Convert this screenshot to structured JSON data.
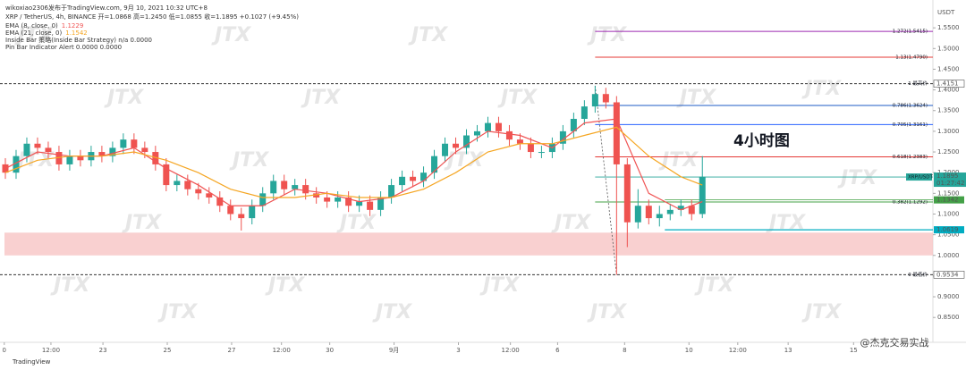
{
  "chart_data": {
    "type": "candlestick",
    "author_line": "wikoxiao2306发布于TradingView.com, 9月 10, 2021 10:32 UTC+8",
    "symbol_line": "XRP / TetherUS, 4h, BINANCE 开=1.0868 高=1.2450 低=1.0855 收=1.1895 +0.1027 (+9.45%)",
    "indicator_lines": [
      "Inside Bar 策略(Inside Bar Strategy) n/a 0.0000",
      "Pin Bar Indicator Alert 0.0000 0.0000"
    ],
    "annotation": "4小时图",
    "y_unit": "USDT",
    "watermark": "JTX",
    "footer_logo": "TradingView",
    "footer_credit": "@杰克交易实战",
    "up_color": "#26a69a",
    "down_color": "#ef5350",
    "xlim": [
      0,
      87
    ],
    "xticks": [
      {
        "value": 0.4,
        "label": "0"
      },
      {
        "value": 4.75,
        "label": "12:00"
      },
      {
        "value": 9.6,
        "label": "23"
      },
      {
        "value": 15.6,
        "label": "25"
      },
      {
        "value": 21.6,
        "label": "27"
      },
      {
        "value": 26.25,
        "label": "12:00"
      },
      {
        "value": 30.75,
        "label": "30"
      },
      {
        "value": 36.75,
        "label": "9月"
      },
      {
        "value": 42.75,
        "label": "3"
      },
      {
        "value": 47.6,
        "label": "12:00"
      },
      {
        "value": 52,
        "label": "6"
      },
      {
        "value": 58.25,
        "label": "8"
      },
      {
        "value": 64.25,
        "label": "10"
      },
      {
        "value": 68.8,
        "label": "12:00"
      },
      {
        "value": 73.5,
        "label": "13"
      },
      {
        "value": 79.6,
        "label": "15"
      }
    ],
    "ylim": [
      0.79,
      1.6
    ],
    "yticks": [
      {
        "value": 0.85,
        "label": "0.8500"
      },
      {
        "value": 0.9,
        "label": "0.9000"
      },
      {
        "value": 0.95,
        "label": "0.9500"
      },
      {
        "value": 1.0,
        "label": "1.0000"
      },
      {
        "value": 1.05,
        "label": "1.0500"
      },
      {
        "value": 1.1,
        "label": "1.1000"
      },
      {
        "value": 1.15,
        "label": "1.1500"
      },
      {
        "value": 1.2,
        "label": "1.2000"
      },
      {
        "value": 1.25,
        "label": "1.2500"
      },
      {
        "value": 1.3,
        "label": "1.3000"
      },
      {
        "value": 1.35,
        "label": "1.3500"
      },
      {
        "value": 1.4,
        "label": "1.4000"
      },
      {
        "value": 1.45,
        "label": "1.4500"
      },
      {
        "value": 1.5,
        "label": "1.5000"
      },
      {
        "value": 1.55,
        "label": "1.5500"
      }
    ],
    "open": [
      1.22,
      1.2,
      1.24,
      1.27,
      1.26,
      1.25,
      1.22,
      1.24,
      1.23,
      1.25,
      1.24,
      1.26,
      1.28,
      1.26,
      1.25,
      1.22,
      1.17,
      1.18,
      1.16,
      1.15,
      1.14,
      1.12,
      1.1,
      1.09,
      1.12,
      1.15,
      1.18,
      1.16,
      1.17,
      1.15,
      1.14,
      1.13,
      1.14,
      1.12,
      1.13,
      1.11,
      1.14,
      1.17,
      1.19,
      1.18,
      1.2,
      1.24,
      1.27,
      1.26,
      1.29,
      1.3,
      1.32,
      1.3,
      1.28,
      1.27,
      1.25,
      1.25,
      1.27,
      1.3,
      1.33,
      1.36,
      1.39,
      1.37,
      1.22,
      1.08,
      1.12,
      1.09,
      1.1,
      1.11,
      1.12,
      1.1
    ],
    "high": [
      1.235,
      1.255,
      1.285,
      1.285,
      1.275,
      1.265,
      1.255,
      1.255,
      1.265,
      1.265,
      1.275,
      1.295,
      1.295,
      1.275,
      1.265,
      1.235,
      1.195,
      1.195,
      1.175,
      1.165,
      1.155,
      1.135,
      1.115,
      1.135,
      1.165,
      1.195,
      1.195,
      1.185,
      1.185,
      1.165,
      1.155,
      1.155,
      1.155,
      1.145,
      1.145,
      1.155,
      1.185,
      1.205,
      1.205,
      1.215,
      1.255,
      1.285,
      1.285,
      1.305,
      1.315,
      1.335,
      1.335,
      1.315,
      1.295,
      1.285,
      1.265,
      1.285,
      1.315,
      1.345,
      1.375,
      1.41,
      1.405,
      1.385,
      1.235,
      1.16,
      1.135,
      1.12,
      1.125,
      1.135,
      1.135,
      1.24
    ],
    "low": [
      1.185,
      1.185,
      1.225,
      1.245,
      1.235,
      1.205,
      1.205,
      1.215,
      1.215,
      1.225,
      1.225,
      1.245,
      1.245,
      1.235,
      1.205,
      1.155,
      1.155,
      1.145,
      1.135,
      1.125,
      1.105,
      1.085,
      1.06,
      1.075,
      1.105,
      1.135,
      1.145,
      1.145,
      1.135,
      1.125,
      1.115,
      1.115,
      1.105,
      1.105,
      1.095,
      1.095,
      1.125,
      1.155,
      1.165,
      1.165,
      1.185,
      1.225,
      1.245,
      1.245,
      1.275,
      1.285,
      1.285,
      1.265,
      1.255,
      1.235,
      1.235,
      1.235,
      1.255,
      1.285,
      1.315,
      1.345,
      1.355,
      0.953,
      1.02,
      1.065,
      1.075,
      1.07,
      1.085,
      1.095,
      1.085,
      1.09
    ],
    "close": [
      1.2,
      1.24,
      1.27,
      1.26,
      1.25,
      1.22,
      1.24,
      1.23,
      1.25,
      1.24,
      1.26,
      1.28,
      1.26,
      1.25,
      1.22,
      1.17,
      1.18,
      1.16,
      1.15,
      1.14,
      1.12,
      1.1,
      1.09,
      1.12,
      1.15,
      1.18,
      1.16,
      1.17,
      1.15,
      1.14,
      1.13,
      1.14,
      1.12,
      1.13,
      1.11,
      1.14,
      1.17,
      1.19,
      1.18,
      1.2,
      1.24,
      1.27,
      1.26,
      1.29,
      1.3,
      1.32,
      1.3,
      1.28,
      1.27,
      1.25,
      1.25,
      1.27,
      1.3,
      1.33,
      1.36,
      1.39,
      1.37,
      1.22,
      1.08,
      1.12,
      1.09,
      1.1,
      1.11,
      1.12,
      1.1,
      1.19
    ],
    "series": [
      {
        "name": "EMA (8, close, 0)",
        "legend_value": "1.1229",
        "color": "#f05454",
        "x": [
          0.5,
          3.5,
          6.5,
          9.5,
          12.5,
          15.5,
          18.5,
          21.5,
          24.5,
          27.5,
          30.5,
          33.5,
          36.5,
          39.5,
          42.5,
          45.5,
          48.5,
          51.5,
          54.5,
          57.5,
          60.5,
          63.5,
          65.5
        ],
        "values": [
          1.21,
          1.25,
          1.24,
          1.24,
          1.26,
          1.21,
          1.17,
          1.12,
          1.12,
          1.16,
          1.15,
          1.13,
          1.14,
          1.18,
          1.25,
          1.3,
          1.29,
          1.26,
          1.32,
          1.33,
          1.15,
          1.11,
          1.13
        ]
      },
      {
        "name": "EMA (21, close, 0)",
        "legend_value": "1.1542",
        "color": "#f5a623",
        "x": [
          0.5,
          3.5,
          6.5,
          9.5,
          12.5,
          15.5,
          18.5,
          21.5,
          24.5,
          27.5,
          30.5,
          33.5,
          36.5,
          39.5,
          42.5,
          45.5,
          48.5,
          51.5,
          54.5,
          57.5,
          60.5,
          63.5,
          65.5
        ],
        "values": [
          1.2,
          1.23,
          1.24,
          1.24,
          1.25,
          1.23,
          1.2,
          1.16,
          1.14,
          1.14,
          1.15,
          1.14,
          1.14,
          1.16,
          1.2,
          1.25,
          1.27,
          1.27,
          1.29,
          1.31,
          1.24,
          1.19,
          1.17
        ]
      }
    ],
    "levels": [
      {
        "label": "1.272(1.5415)",
        "value": 1.5415,
        "color": "#9c27b0"
      },
      {
        "label": "1.13(1.4790)",
        "value": 1.479,
        "color": "#e53935"
      },
      {
        "label": "1 最高价",
        "axis_label": "1.4151",
        "value": 1.4151,
        "color": "#333333",
        "dashed": true
      },
      {
        "label": "0.786(1.3624)",
        "value": 1.3624,
        "color": "#1e5bc6"
      },
      {
        "label": "0.705(1.3161)",
        "value": 1.3161,
        "color": "#2962ff"
      },
      {
        "label": "0.618(1.2383)",
        "value": 1.2383,
        "color": "#e53935"
      },
      {
        "label": "0.382(1.1292)",
        "value": 1.1292,
        "color": "#43a047"
      },
      {
        "label": "0 最低价",
        "axis_label": "0.9534",
        "value": 0.9534,
        "color": "#333333",
        "dashed": true
      }
    ],
    "zone": {
      "from": 1.0,
      "to": 1.055,
      "color": "#f8c4c4"
    },
    "support": {
      "value": 1.0619,
      "label": "1.0619",
      "color": "#00acc1"
    },
    "box_level": {
      "value": 1.1342,
      "label": "1.1342",
      "color": "#43a047"
    },
    "price": {
      "value": 1.1895,
      "label": "1.1895",
      "tag": "XRP/USDT",
      "countdown": "01:27:42",
      "color": "#26a69a"
    }
  }
}
